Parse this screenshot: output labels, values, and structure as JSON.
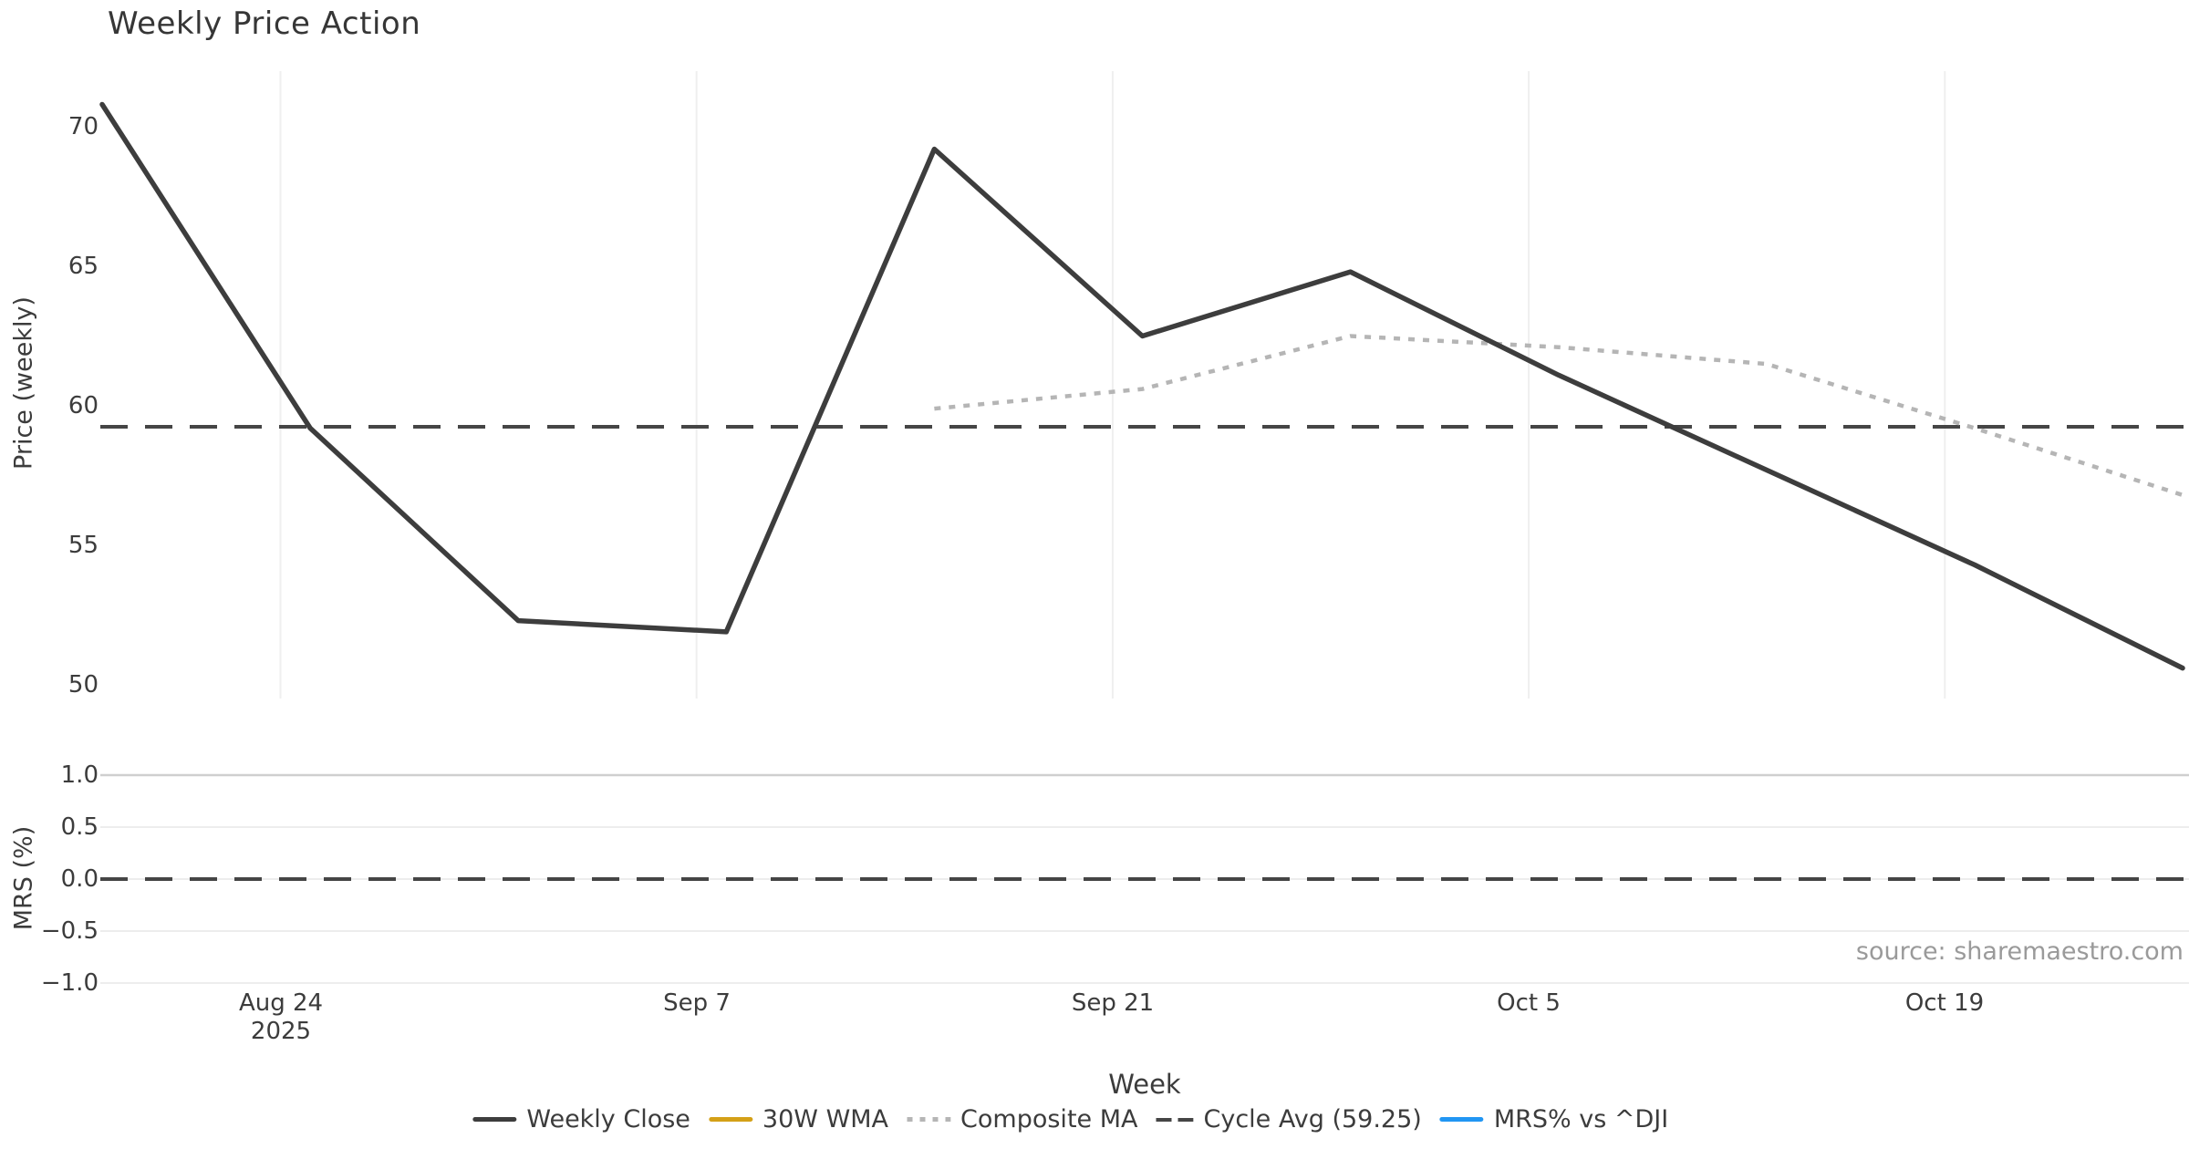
{
  "title": "Weekly Price Action",
  "source_note": "source: sharemaestro.com",
  "colors": {
    "weekly_close": "#3d3d3d",
    "wma_30w": "#d4a017",
    "composite_ma": "#b5b5b5",
    "cycle_avg": "#454545",
    "mrs_line": "#2196f3",
    "grid_light": "#ededed",
    "tick_text": "#3c3c3c",
    "source_text": "#9a9a9a"
  },
  "price_panel": {
    "ylabel": "Price (weekly)",
    "yticks": [
      "70",
      "65",
      "60",
      "55",
      "50"
    ]
  },
  "mrs_panel": {
    "ylabel": "MRS (%)",
    "yticks": [
      "1.0",
      "0.5",
      "0.0",
      "−0.5",
      "−1.0"
    ]
  },
  "x_axis": {
    "label": "Week",
    "ticks": [
      {
        "label": "Aug 24",
        "sublabel": "2025"
      },
      {
        "label": "Sep 7"
      },
      {
        "label": "Sep 21"
      },
      {
        "label": "Oct 5"
      },
      {
        "label": "Oct 19"
      }
    ]
  },
  "legend": [
    {
      "label": "Weekly Close",
      "swatch": "solid-dark"
    },
    {
      "label": "30W WMA",
      "swatch": "solid-gold"
    },
    {
      "label": "Composite MA",
      "swatch": "dotted-gray"
    },
    {
      "label": "Cycle Avg (59.25)",
      "swatch": "dashed-dark"
    },
    {
      "label": "MRS% vs ^DJI",
      "swatch": "solid-blue"
    }
  ],
  "chart_data": {
    "type": "line",
    "x": [
      "2025-08-18",
      "2025-08-25",
      "2025-09-01",
      "2025-09-08",
      "2025-09-15",
      "2025-09-22",
      "2025-09-29",
      "2025-10-06",
      "2025-10-13",
      "2025-10-20",
      "2025-10-27"
    ],
    "xtick_labels": [
      "Aug 24\n2025",
      "Sep 7",
      "Sep 21",
      "Oct 5",
      "Oct 19"
    ],
    "series": [
      {
        "name": "Weekly Close",
        "panel": "price",
        "style": "solid",
        "color": "#3d3d3d",
        "values": [
          70.8,
          59.2,
          52.3,
          51.9,
          69.2,
          62.5,
          64.8,
          61.1,
          57.7,
          54.3,
          50.6
        ]
      },
      {
        "name": "30W WMA",
        "panel": "price",
        "style": "solid",
        "color": "#d4a017",
        "values": [
          null,
          null,
          null,
          null,
          null,
          null,
          null,
          null,
          null,
          null,
          null
        ]
      },
      {
        "name": "Composite MA",
        "panel": "price",
        "style": "dotted",
        "color": "#b5b5b5",
        "values": [
          null,
          null,
          null,
          null,
          59.9,
          60.6,
          62.5,
          62.1,
          61.5,
          59.2,
          56.8
        ]
      },
      {
        "name": "MRS% vs ^DJI",
        "panel": "mrs",
        "style": "solid",
        "color": "#2196f3",
        "values": [
          null,
          null,
          null,
          null,
          null,
          null,
          null,
          null,
          null,
          null,
          null
        ]
      }
    ],
    "cycle_avg": 59.25,
    "mrs_zero_line": 0.0,
    "title": "Weekly Price Action",
    "xlabel": "Week",
    "ylabel_price": "Price (weekly)",
    "ylabel_mrs": "MRS (%)",
    "price_ylim": [
      49.5,
      72.0
    ],
    "price_yticks": [
      70,
      65,
      60,
      55,
      50
    ],
    "mrs_ylim": [
      -1.08,
      1.08
    ],
    "mrs_yticks": [
      1.0,
      0.5,
      0.0,
      -0.5,
      -1.0
    ],
    "grid": "vertical date gridlines in price panel; horizontal gridlines in MRS panel",
    "legend_position": "bottom center"
  }
}
